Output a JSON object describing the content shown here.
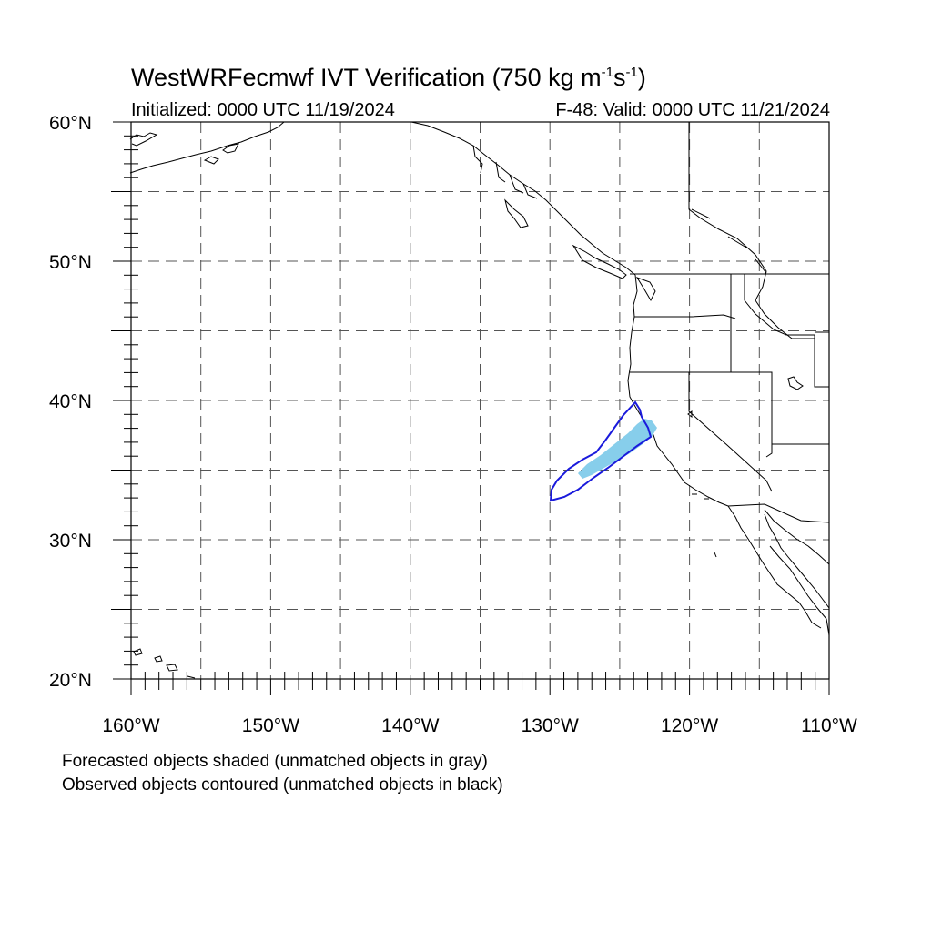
{
  "title": {
    "main": "WestWRFecmwf IVT Verification (750 kg m",
    "sup1": "-1",
    "mid": "s",
    "sup2": "-1",
    "end": ")"
  },
  "initialized": "Initialized: 0000 UTC 11/19/2024",
  "valid": "F-48: Valid: 0000 UTC 11/21/2024",
  "footnotes": {
    "forecast": "Forecasted objects shaded (unmatched objects in gray)",
    "observed": "Observed objects contoured (unmatched objects in black)"
  },
  "map": {
    "lon_range": [
      -160,
      -110
    ],
    "lat_range": [
      20,
      60
    ],
    "lat_labels": [
      "60°N",
      "50°N",
      "40°N",
      "30°N",
      "20°N"
    ],
    "lon_labels": [
      "160°W",
      "150°W",
      "140°W",
      "130°W",
      "120°W",
      "110°W"
    ],
    "gridlines": "dashed every 5 degrees",
    "colors": {
      "forecast_shading": "#87ceeb",
      "observed_contour": "#1a1adc",
      "coastline": "#000000",
      "grid": "#555555"
    }
  }
}
